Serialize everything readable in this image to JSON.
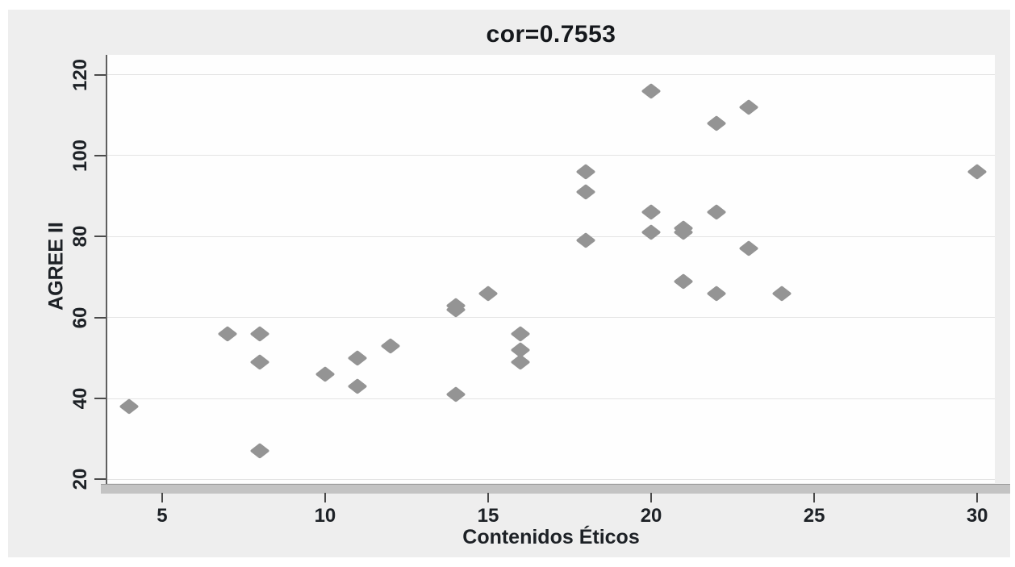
{
  "page": {
    "background": "#ffffff"
  },
  "figure": {
    "background": "#eeeeee"
  },
  "colors": {
    "plot_background": "#fefefe",
    "gridline": "#e4e4e4",
    "axis_line": "#5f5f5f",
    "axis_band": "#c3c3c3",
    "tick": "#4a4a4a",
    "text": "#1d2126",
    "title_text": "#15181c",
    "marker": "#949494"
  },
  "chart_data": {
    "type": "scatter",
    "title": "cor=0.7553",
    "xlabel": "Contenidos Éticos",
    "ylabel": "AGREE II",
    "x_ticks": [
      5,
      10,
      15,
      20,
      25,
      30
    ],
    "y_ticks": [
      20,
      40,
      60,
      80,
      100,
      120
    ],
    "xlim": [
      3.32,
      30.54
    ],
    "ylim": [
      19.1,
      124.9
    ],
    "grid": "horizontal",
    "legend": "none",
    "marker": {
      "shape": "diamond",
      "color": "#949494"
    },
    "points": [
      [
        4,
        38
      ],
      [
        7,
        56
      ],
      [
        8,
        27
      ],
      [
        8,
        49
      ],
      [
        8,
        56
      ],
      [
        10,
        46
      ],
      [
        11,
        43
      ],
      [
        11,
        50
      ],
      [
        12,
        53
      ],
      [
        14,
        41
      ],
      [
        14,
        62
      ],
      [
        14,
        63
      ],
      [
        15,
        66
      ],
      [
        16,
        49
      ],
      [
        16,
        52
      ],
      [
        16,
        56
      ],
      [
        18,
        79
      ],
      [
        18,
        91
      ],
      [
        18,
        96
      ],
      [
        20,
        81
      ],
      [
        20,
        86
      ],
      [
        20,
        116
      ],
      [
        21,
        69
      ],
      [
        21,
        81
      ],
      [
        21,
        82
      ],
      [
        22,
        66
      ],
      [
        22,
        86
      ],
      [
        22,
        108
      ],
      [
        23,
        77
      ],
      [
        23,
        112
      ],
      [
        24,
        66
      ],
      [
        30,
        96
      ]
    ]
  }
}
